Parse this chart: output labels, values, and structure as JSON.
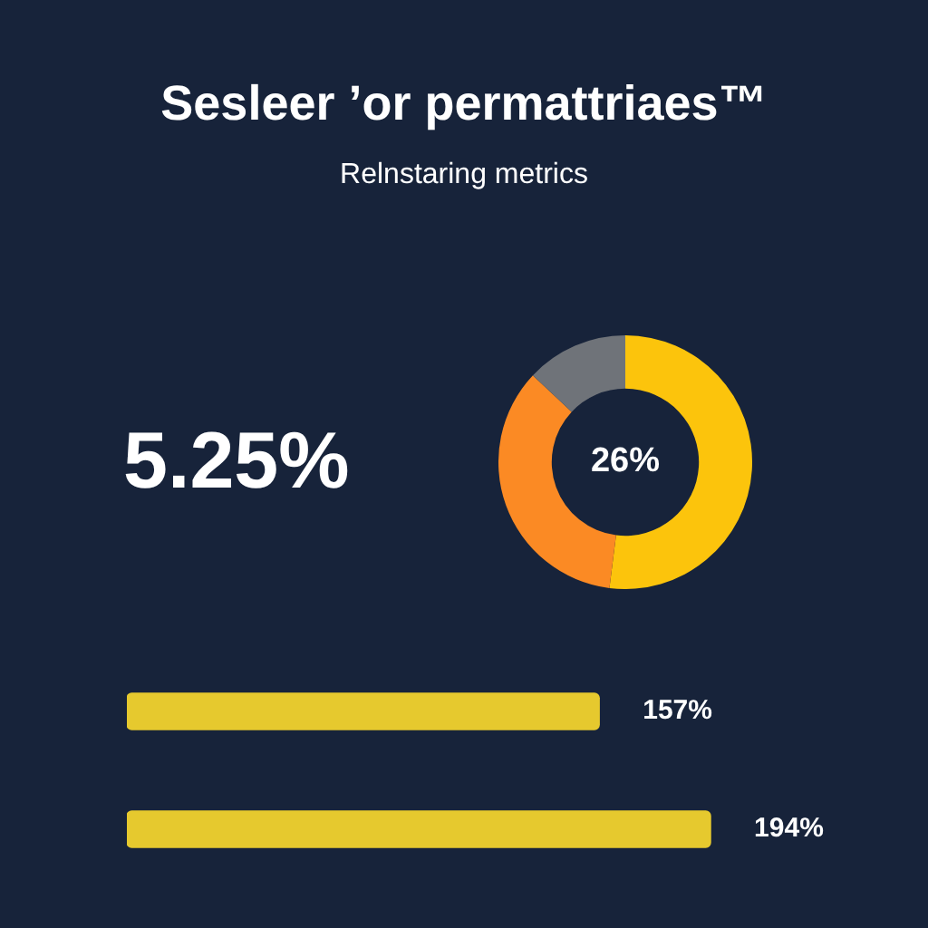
{
  "chart_data": [
    {
      "type": "donut",
      "title": "Sesleer ’or permattriaes™",
      "subtitle": "Relnstaring metrics",
      "categories": [
        null,
        null,
        null
      ],
      "values": [
        52,
        35,
        13
      ],
      "colors": [
        "#fcc40c",
        "#fb8a24",
        "#6f7379"
      ],
      "annotations": [
        "5.25%",
        "26%"
      ]
    },
    {
      "type": "bar",
      "orientation": "horizontal",
      "categories": [
        null,
        null
      ],
      "values": [
        157,
        194
      ],
      "value_labels": [
        "157%",
        "194%"
      ],
      "color": "#e6c92e"
    }
  ]
}
